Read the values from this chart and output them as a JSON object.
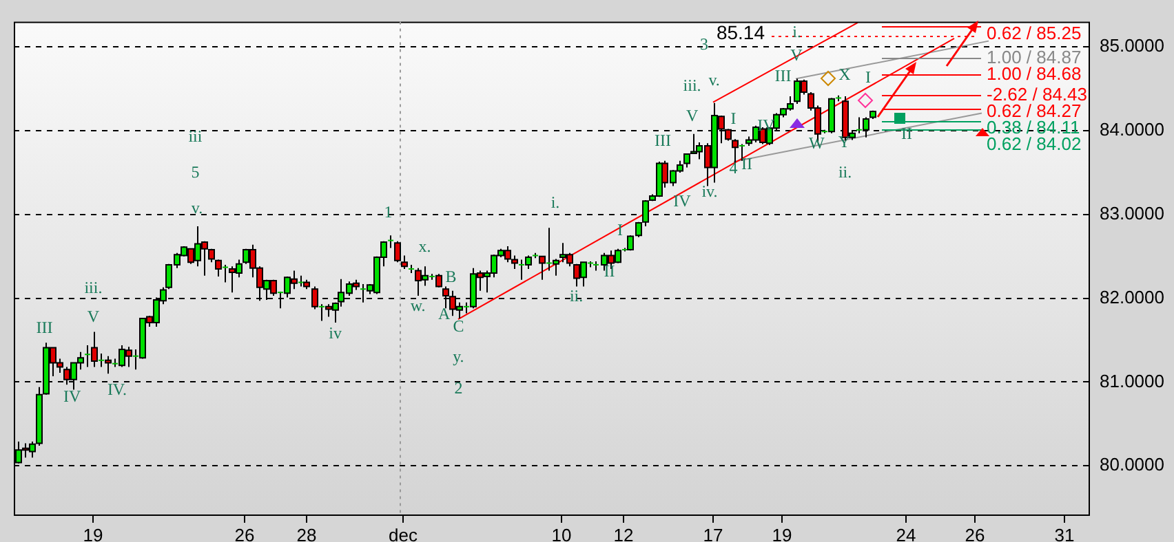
{
  "chart_data": {
    "type": "candlestick",
    "categories": [
      null,
      null,
      null,
      null,
      null,
      null,
      null,
      null,
      null,
      null,
      null,
      "19",
      null,
      null,
      null,
      null,
      null,
      null,
      null,
      null,
      null,
      null,
      null,
      null,
      null,
      null,
      null,
      null,
      null,
      null,
      null,
      null,
      null,
      "26",
      null,
      null,
      null,
      null,
      null,
      null,
      null,
      null,
      "28",
      null,
      null,
      null,
      null,
      null,
      null,
      null,
      null,
      null,
      null,
      null,
      null,
      null,
      "dec",
      null,
      null,
      null,
      null,
      null,
      null,
      null,
      null,
      null,
      null,
      null,
      null,
      null,
      null,
      null,
      null,
      null,
      null,
      null,
      null,
      null,
      null,
      "10",
      null,
      null,
      null,
      null,
      null,
      null,
      null,
      null,
      "12",
      null,
      null,
      null,
      null,
      null,
      null,
      null,
      null,
      null,
      null,
      null,
      null,
      "17",
      null,
      null,
      null,
      null,
      null,
      null,
      null,
      null,
      null,
      "19",
      null,
      null,
      null,
      null,
      null,
      null,
      null,
      null,
      null,
      null,
      null,
      null,
      null,
      null,
      null,
      null,
      null,
      "24",
      null,
      null,
      null,
      null,
      null,
      null,
      null,
      null,
      null,
      "26",
      null,
      null,
      null,
      null,
      null,
      null,
      null,
      null,
      null,
      null,
      null,
      null,
      "31",
      null,
      null,
      null
    ],
    "ohlc": [
      [
        80.04,
        80.29,
        80.03,
        80.19
      ],
      [
        80.21,
        80.27,
        80.1,
        80.19
      ],
      [
        80.17,
        80.29,
        80.1,
        80.26
      ],
      [
        80.27,
        80.94,
        80.24,
        80.85
      ],
      [
        80.86,
        81.47,
        80.85,
        81.41
      ],
      [
        81.41,
        81.41,
        81.07,
        81.23
      ],
      [
        81.23,
        81.28,
        81.11,
        81.18
      ],
      [
        81.15,
        81.18,
        80.97,
        81.03
      ],
      [
        81.03,
        81.23,
        80.91,
        81.23
      ],
      [
        81.23,
        81.36,
        81.15,
        81.29
      ],
      [
        81.33,
        81.44,
        81.18,
        81.33
      ],
      [
        81.41,
        81.6,
        81.18,
        81.25
      ],
      [
        81.26,
        81.34,
        81.18,
        81.26
      ],
      [
        81.26,
        81.31,
        81.1,
        81.23
      ],
      [
        81.22,
        81.28,
        81.18,
        81.22
      ],
      [
        81.2,
        81.44,
        81.18,
        81.39
      ],
      [
        81.38,
        81.42,
        81.18,
        81.31
      ],
      [
        81.31,
        81.39,
        81.15,
        81.31
      ],
      [
        81.29,
        81.76,
        81.28,
        81.76
      ],
      [
        81.78,
        81.79,
        81.66,
        81.71
      ],
      [
        81.71,
        82.01,
        81.66,
        81.98
      ],
      [
        81.97,
        82.13,
        81.93,
        82.1
      ],
      [
        82.13,
        82.41,
        82.11,
        82.4
      ],
      [
        82.4,
        82.54,
        82.36,
        82.52
      ],
      [
        82.51,
        82.62,
        82.5,
        82.61
      ],
      [
        82.59,
        82.59,
        82.41,
        82.43
      ],
      [
        82.45,
        82.86,
        82.38,
        82.65
      ],
      [
        82.67,
        82.68,
        82.27,
        82.59
      ],
      [
        82.58,
        82.59,
        82.43,
        82.47
      ],
      [
        82.45,
        82.46,
        82.26,
        82.35
      ],
      [
        82.37,
        82.4,
        82.19,
        82.37
      ],
      [
        82.35,
        82.38,
        82.07,
        82.31
      ],
      [
        82.3,
        82.46,
        82.25,
        82.41
      ],
      [
        82.43,
        82.59,
        82.41,
        82.58
      ],
      [
        82.58,
        82.64,
        82.25,
        82.36
      ],
      [
        82.36,
        82.38,
        81.97,
        82.13
      ],
      [
        82.11,
        82.22,
        81.98,
        82.21
      ],
      [
        82.21,
        82.22,
        82.03,
        82.06
      ],
      [
        82.07,
        82.08,
        81.88,
        82.07
      ],
      [
        82.06,
        82.26,
        82.01,
        82.25
      ],
      [
        82.23,
        82.33,
        82.11,
        82.18
      ],
      [
        82.19,
        82.27,
        82.14,
        82.19
      ],
      [
        82.19,
        82.22,
        82.11,
        82.14
      ],
      [
        82.11,
        82.14,
        81.87,
        81.9
      ],
      [
        81.9,
        81.93,
        81.73,
        81.9
      ],
      [
        81.9,
        81.93,
        81.78,
        81.87
      ],
      [
        81.86,
        81.95,
        81.71,
        81.94
      ],
      [
        81.96,
        82.23,
        81.9,
        82.07
      ],
      [
        82.06,
        82.2,
        82.03,
        82.17
      ],
      [
        82.18,
        82.22,
        82.1,
        82.14
      ],
      [
        82.11,
        82.17,
        81.95,
        82.11
      ],
      [
        82.09,
        82.17,
        82.05,
        82.16
      ],
      [
        82.07,
        82.5,
        82.05,
        82.49
      ],
      [
        82.49,
        82.68,
        82.38,
        82.67
      ],
      [
        82.69,
        82.75,
        82.6,
        82.69
      ],
      [
        82.66,
        82.68,
        82.43,
        82.45
      ],
      [
        82.43,
        82.51,
        82.35,
        82.38
      ],
      [
        82.35,
        82.4,
        82.3,
        82.35
      ],
      [
        82.33,
        82.36,
        82.03,
        82.21
      ],
      [
        82.22,
        82.38,
        82.15,
        82.27
      ],
      [
        82.26,
        82.29,
        82.22,
        82.26
      ],
      [
        82.27,
        82.29,
        82.13,
        82.14
      ],
      [
        82.11,
        82.14,
        81.88,
        82.03
      ],
      [
        82.02,
        82.09,
        81.79,
        81.87
      ],
      [
        81.86,
        81.95,
        81.76,
        81.9
      ],
      [
        81.9,
        81.95,
        81.82,
        81.9
      ],
      [
        81.9,
        82.36,
        81.88,
        82.29
      ],
      [
        82.3,
        82.33,
        82.09,
        82.25
      ],
      [
        82.26,
        82.33,
        82.07,
        82.3
      ],
      [
        82.3,
        82.52,
        82.25,
        82.51
      ],
      [
        82.51,
        82.59,
        82.49,
        82.57
      ],
      [
        82.57,
        82.62,
        82.43,
        82.47
      ],
      [
        82.46,
        82.51,
        82.35,
        82.42
      ],
      [
        82.4,
        82.46,
        82.22,
        82.4
      ],
      [
        82.4,
        82.51,
        82.35,
        82.49
      ],
      [
        82.51,
        82.54,
        82.48,
        82.51
      ],
      [
        82.5,
        82.5,
        82.22,
        82.42
      ],
      [
        82.42,
        82.84,
        82.33,
        82.42
      ],
      [
        82.41,
        82.47,
        82.27,
        82.45
      ],
      [
        82.49,
        82.66,
        82.43,
        82.52
      ],
      [
        82.52,
        82.54,
        82.38,
        82.42
      ],
      [
        82.4,
        82.41,
        82.14,
        82.24
      ],
      [
        82.25,
        82.43,
        82.14,
        82.43
      ],
      [
        82.42,
        82.44,
        82.37,
        82.42
      ],
      [
        82.4,
        82.44,
        82.33,
        82.4
      ],
      [
        82.4,
        82.54,
        82.33,
        82.51
      ],
      [
        82.51,
        82.57,
        82.35,
        82.42
      ],
      [
        82.43,
        82.59,
        82.42,
        82.57
      ],
      [
        82.58,
        82.6,
        82.56,
        82.58
      ],
      [
        82.58,
        82.75,
        82.57,
        82.74
      ],
      [
        82.75,
        82.91,
        82.73,
        82.9
      ],
      [
        82.91,
        83.17,
        82.86,
        83.16
      ],
      [
        83.17,
        83.24,
        83.16,
        83.22
      ],
      [
        83.22,
        83.63,
        83.21,
        83.61
      ],
      [
        83.61,
        83.64,
        83.32,
        83.38
      ],
      [
        83.38,
        83.53,
        83.34,
        83.52
      ],
      [
        83.52,
        83.64,
        83.5,
        83.59
      ],
      [
        83.61,
        83.73,
        83.56,
        83.72
      ],
      [
        83.73,
        83.96,
        83.72,
        83.75
      ],
      [
        83.75,
        83.86,
        83.66,
        83.82
      ],
      [
        83.82,
        83.85,
        83.34,
        83.56
      ],
      [
        83.56,
        84.33,
        83.38,
        84.18
      ],
      [
        84.17,
        84.18,
        83.85,
        84.02
      ],
      [
        84.01,
        84.02,
        83.88,
        83.9
      ],
      [
        83.88,
        83.9,
        83.61,
        83.8
      ],
      [
        83.82,
        83.84,
        83.64,
        83.82
      ],
      [
        83.85,
        83.93,
        83.82,
        83.89
      ],
      [
        83.89,
        84.06,
        83.86,
        84.04
      ],
      [
        84.02,
        84.04,
        83.84,
        83.86
      ],
      [
        83.85,
        84.04,
        83.83,
        84.03
      ],
      [
        84.03,
        84.21,
        84.0,
        84.19
      ],
      [
        84.19,
        84.27,
        84.16,
        84.26
      ],
      [
        84.26,
        84.41,
        84.24,
        84.32
      ],
      [
        84.35,
        84.62,
        84.32,
        84.59
      ],
      [
        84.59,
        84.61,
        84.43,
        84.46
      ],
      [
        84.44,
        84.46,
        84.24,
        84.27
      ],
      [
        84.27,
        84.3,
        83.86,
        83.96
      ],
      [
        83.99,
        84.01,
        83.97,
        83.99
      ],
      [
        83.99,
        84.39,
        83.97,
        84.38
      ],
      [
        84.39,
        84.42,
        84.35,
        84.39
      ],
      [
        84.35,
        84.41,
        83.88,
        83.92
      ],
      [
        83.92,
        84.0,
        83.89,
        83.97
      ],
      [
        84.01,
        84.16,
        83.97,
        84.01
      ],
      [
        84.01,
        84.16,
        83.92,
        84.14
      ],
      [
        84.16,
        84.24,
        84.14,
        84.23
      ],
      null,
      null,
      null,
      null,
      null,
      null,
      null,
      null,
      null,
      null,
      null,
      null,
      null,
      null,
      null,
      null,
      null,
      null,
      null,
      null,
      null,
      null,
      null,
      null,
      null,
      null,
      null,
      null,
      null,
      null,
      null
    ],
    "series": [
      {
        "type": "line",
        "color": "#ff0000",
        "values": [
          null,
          null,
          null,
          null,
          null,
          null,
          null,
          null,
          null,
          null,
          null,
          null,
          null,
          null,
          null,
          null,
          null,
          null,
          null,
          null,
          null,
          null,
          null,
          null,
          null,
          null,
          null,
          null,
          null,
          null,
          null,
          null,
          null,
          null,
          null,
          null,
          null,
          null,
          null,
          null,
          null,
          null,
          null,
          null,
          null,
          null,
          null,
          null,
          null,
          null,
          null,
          null,
          null,
          null,
          null,
          null,
          null,
          null,
          null,
          null,
          null,
          null,
          null,
          null,
          81.75,
          null,
          null,
          null,
          null,
          null,
          null,
          null,
          null,
          null,
          null,
          null,
          null,
          null,
          null,
          null,
          null,
          null,
          null,
          null,
          null,
          null,
          null,
          null,
          null,
          null,
          null,
          null,
          null,
          null,
          null,
          null,
          null,
          null,
          null,
          null,
          null,
          null,
          null,
          null,
          null,
          null,
          null,
          null,
          null,
          null,
          null,
          null,
          null,
          null,
          null,
          null,
          null,
          null,
          null,
          null,
          null,
          null,
          null,
          null,
          null,
          null,
          null,
          null,
          null,
          null,
          null,
          null,
          null,
          null,
          null,
          null,
          85.1,
          null,
          null,
          null,
          null,
          null,
          null,
          null,
          null,
          null,
          null,
          null,
          null,
          null,
          null,
          null,
          null,
          null,
          null,
          null
        ]
      },
      {
        "type": "line",
        "color": "#ff0000",
        "values": [
          null,
          null,
          null,
          null,
          null,
          null,
          null,
          null,
          null,
          null,
          null,
          null,
          null,
          null,
          null,
          null,
          null,
          null,
          null,
          null,
          null,
          null,
          null,
          null,
          null,
          null,
          null,
          null,
          null,
          null,
          null,
          null,
          null,
          null,
          null,
          null,
          null,
          null,
          null,
          null,
          null,
          null,
          null,
          null,
          null,
          null,
          null,
          null,
          null,
          null,
          null,
          null,
          null,
          null,
          null,
          null,
          null,
          null,
          null,
          null,
          null,
          null,
          null,
          null,
          null,
          null,
          null,
          null,
          null,
          null,
          null,
          null,
          null,
          null,
          null,
          null,
          null,
          null,
          null,
          null,
          null,
          null,
          null,
          null,
          null,
          null,
          null,
          null,
          null,
          null,
          null,
          null,
          null,
          null,
          null,
          null,
          null,
          null,
          null,
          null,
          null,
          84.34,
          null,
          null,
          null,
          null,
          null,
          null,
          null,
          null,
          null,
          null,
          null,
          null,
          null,
          null,
          null,
          null,
          null,
          null,
          null,
          null,
          85.29,
          null,
          null,
          null,
          null,
          null,
          null,
          null,
          null,
          null,
          null,
          null,
          null,
          null,
          null,
          null,
          null,
          null,
          null,
          null,
          null,
          null,
          null,
          null,
          null,
          null,
          null,
          null,
          null,
          null,
          null,
          null,
          null,
          null
        ]
      },
      {
        "type": "line",
        "color": "#999999",
        "values": [
          null,
          null,
          null,
          null,
          null,
          null,
          null,
          null,
          null,
          null,
          null,
          null,
          null,
          null,
          null,
          null,
          null,
          null,
          null,
          null,
          null,
          null,
          null,
          null,
          null,
          null,
          null,
          null,
          null,
          null,
          null,
          null,
          null,
          null,
          null,
          null,
          null,
          null,
          null,
          null,
          null,
          null,
          null,
          null,
          null,
          null,
          null,
          null,
          null,
          null,
          null,
          null,
          null,
          null,
          null,
          null,
          null,
          null,
          null,
          null,
          null,
          null,
          null,
          null,
          null,
          null,
          null,
          null,
          null,
          null,
          null,
          null,
          null,
          null,
          null,
          null,
          null,
          null,
          null,
          null,
          null,
          null,
          null,
          null,
          null,
          null,
          null,
          null,
          null,
          null,
          null,
          null,
          null,
          null,
          null,
          null,
          null,
          null,
          null,
          null,
          null,
          null,
          null,
          null,
          null,
          null,
          null,
          null,
          null,
          null,
          null,
          null,
          null,
          84.62,
          null,
          null,
          null,
          null,
          null,
          null,
          null,
          null,
          null,
          null,
          null,
          null,
          null,
          null,
          null,
          null,
          null,
          null,
          null,
          null,
          null,
          null,
          null,
          null,
          null,
          null,
          null,
          85.07,
          null,
          null,
          null,
          null,
          null,
          null,
          null,
          null,
          null,
          null,
          null,
          null,
          null,
          null
        ]
      },
      {
        "type": "line",
        "color": "#999999",
        "values": [
          null,
          null,
          null,
          null,
          null,
          null,
          null,
          null,
          null,
          null,
          null,
          null,
          null,
          null,
          null,
          null,
          null,
          null,
          null,
          null,
          null,
          null,
          null,
          null,
          null,
          null,
          null,
          null,
          null,
          null,
          null,
          null,
          null,
          null,
          null,
          null,
          null,
          null,
          null,
          null,
          null,
          null,
          null,
          null,
          null,
          null,
          null,
          null,
          null,
          null,
          null,
          null,
          null,
          null,
          null,
          null,
          null,
          null,
          null,
          null,
          null,
          null,
          null,
          null,
          null,
          null,
          null,
          null,
          null,
          null,
          null,
          null,
          null,
          null,
          null,
          null,
          null,
          null,
          null,
          null,
          null,
          null,
          null,
          null,
          null,
          null,
          null,
          null,
          null,
          null,
          null,
          null,
          null,
          null,
          null,
          null,
          null,
          null,
          null,
          null,
          null,
          null,
          null,
          null,
          83.63,
          null,
          null,
          null,
          null,
          null,
          null,
          null,
          null,
          null,
          null,
          null,
          null,
          null,
          null,
          null,
          null,
          null,
          null,
          null,
          null,
          null,
          null,
          null,
          null,
          null,
          null,
          null,
          null,
          null,
          null,
          null,
          null,
          null,
          null,
          null,
          84.21,
          null,
          null,
          null,
          null,
          null,
          null,
          null,
          null,
          null,
          null,
          null,
          null,
          null,
          null,
          null
        ]
      }
    ],
    "marker": "none",
    "ylim": [
      79.42,
      85.3
    ],
    "yticks": [
      {
        "value": 80,
        "label": "80.0000"
      },
      {
        "value": 81,
        "label": "81.0000"
      },
      {
        "value": 82,
        "label": "82.0000"
      },
      {
        "value": 83,
        "label": "83.0000"
      },
      {
        "value": 84,
        "label": "84.0000"
      },
      {
        "value": 85,
        "label": "85.0000"
      }
    ],
    "grid": "y",
    "ref_lines": [
      {
        "axis": "x",
        "value": "dec",
        "color": "#999999",
        "line_style": "dotted"
      },
      {
        "axis": "y",
        "value": 85.14,
        "label": "85.14",
        "color": "#ff0000",
        "line_style": "dotted"
      },
      {
        "axis": "y",
        "value": 85.25,
        "label": "0.62 / 85.25",
        "color": "#ff0000",
        "line_style": "solid"
      },
      {
        "axis": "y",
        "value": 84.87,
        "label": "1.00 / 84.87",
        "color": "#888888",
        "line_style": "solid"
      },
      {
        "axis": "y",
        "value": 84.68,
        "label": "1.00 / 84.68",
        "color": "#ff0000",
        "line_style": "solid"
      },
      {
        "axis": "y",
        "value": 84.43,
        "label": "-2.62 / 84.43",
        "color": "#ff0000",
        "line_style": "solid"
      },
      {
        "axis": "y",
        "value": 84.27,
        "label": "0.62 / 84.27",
        "color": "#ff0000",
        "line_style": "solid"
      },
      {
        "axis": "y",
        "value": 84.11,
        "label": "0.38 / 84.11",
        "color": "#00a060",
        "line_style": "solid"
      },
      {
        "axis": "y",
        "value": 84.02,
        "label": "0.62 / 84.02",
        "color": "#00a060",
        "line_style": "solid"
      }
    ],
    "annotations": [
      "iii",
      "5",
      "v.",
      "iii.",
      "III",
      "V",
      "IV",
      "IV.",
      "iv",
      "1",
      "x.",
      "w.",
      "B",
      "A",
      "C",
      "y.",
      "2",
      "i.",
      "ii.",
      "I",
      "II",
      "III",
      "IV",
      "V",
      "iii.",
      "v.",
      "3",
      "iv.",
      "4",
      "I",
      "II",
      "III",
      "V",
      "IV",
      "X",
      "W",
      "Y",
      "ii.",
      "i.",
      "I",
      "II"
    ]
  }
}
